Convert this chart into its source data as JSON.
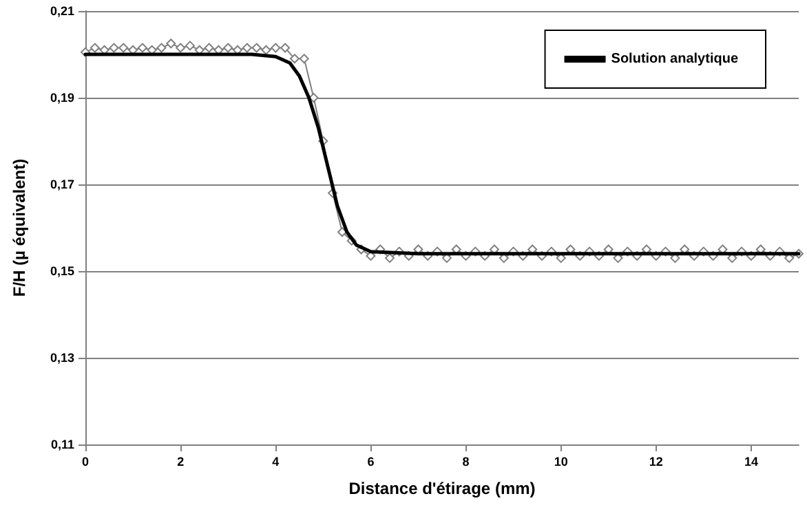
{
  "chart_data": {
    "type": "line",
    "xlabel": "Distance d'étirage (mm)",
    "ylabel": "F/H (µ équivalent)",
    "xlim": [
      0,
      15
    ],
    "xticks": [
      0,
      2,
      4,
      6,
      8,
      10,
      12,
      14
    ],
    "ylim": [
      0.11,
      0.21
    ],
    "yticks": [
      {
        "value": 0.11,
        "label": "0,11"
      },
      {
        "value": 0.13,
        "label": "0,13"
      },
      {
        "value": 0.15,
        "label": "0,15"
      },
      {
        "value": 0.17,
        "label": "0,17"
      },
      {
        "value": 0.19,
        "label": "0,19"
      },
      {
        "value": 0.21,
        "label": "0,21"
      }
    ],
    "grid": "y",
    "legend": "top right",
    "series": [
      {
        "name": "Solution analytique",
        "color": "#000000",
        "marker": "none",
        "line_style": "solid",
        "x": [
          0,
          1,
          2,
          3,
          3.5,
          4,
          4.3,
          4.5,
          4.7,
          4.9,
          5.1,
          5.3,
          5.5,
          5.7,
          6,
          7,
          15
        ],
        "values": [
          0.2,
          0.2,
          0.2,
          0.2,
          0.2,
          0.1995,
          0.198,
          0.195,
          0.19,
          0.183,
          0.174,
          0.165,
          0.159,
          0.156,
          0.1545,
          0.154,
          0.154
        ]
      },
      {
        "color": "#808080",
        "marker": "diamond",
        "line_style": "solid",
        "x": [
          0,
          0.2,
          0.4,
          0.6,
          0.8,
          1,
          1.2,
          1.4,
          1.6,
          1.8,
          2,
          2.2,
          2.4,
          2.6,
          2.8,
          3,
          3.2,
          3.4,
          3.6,
          3.8,
          4,
          4.2,
          4.4,
          4.6,
          4.8,
          5,
          5.2,
          5.4,
          5.6,
          5.8,
          6,
          6.2,
          6.4,
          6.6,
          6.8,
          7,
          7.2,
          7.4,
          7.6,
          7.8,
          8,
          8.2,
          8.4,
          8.6,
          8.8,
          9,
          9.2,
          9.4,
          9.6,
          9.8,
          10,
          10.2,
          10.4,
          10.6,
          10.8,
          11,
          11.2,
          11.4,
          11.6,
          11.8,
          12,
          12.2,
          12.4,
          12.6,
          12.8,
          13,
          13.2,
          13.4,
          13.6,
          13.8,
          14,
          14.2,
          14.4,
          14.6,
          14.8,
          15
        ],
        "values": [
          0.2005,
          0.2015,
          0.201,
          0.2015,
          0.2015,
          0.201,
          0.2015,
          0.201,
          0.2015,
          0.2025,
          0.2015,
          0.202,
          0.201,
          0.2015,
          0.201,
          0.2015,
          0.201,
          0.2015,
          0.2015,
          0.201,
          0.2015,
          0.2015,
          0.199,
          0.199,
          0.19,
          0.18,
          0.168,
          0.159,
          0.157,
          0.155,
          0.1535,
          0.155,
          0.153,
          0.1545,
          0.1535,
          0.155,
          0.1535,
          0.1545,
          0.153,
          0.155,
          0.1535,
          0.1545,
          0.1535,
          0.155,
          0.153,
          0.1545,
          0.1535,
          0.155,
          0.1535,
          0.1545,
          0.153,
          0.155,
          0.1535,
          0.1545,
          0.1535,
          0.155,
          0.153,
          0.1545,
          0.1535,
          0.155,
          0.1535,
          0.1545,
          0.153,
          0.155,
          0.1535,
          0.1545,
          0.1535,
          0.155,
          0.153,
          0.1545,
          0.1535,
          0.155,
          0.1535,
          0.1545,
          0.153,
          0.154
        ]
      }
    ]
  }
}
